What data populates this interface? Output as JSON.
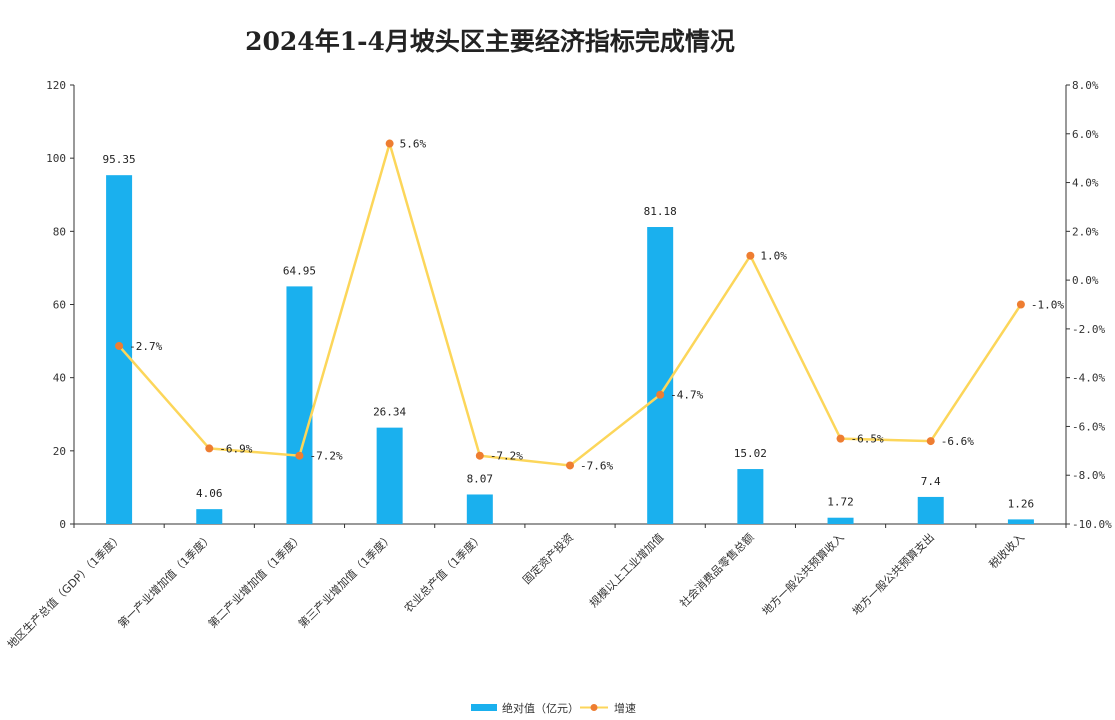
{
  "chart_data": {
    "type": "bar",
    "title": "2024年1-4月坡头区主要经济指标完成情况",
    "categories": [
      "地区生产总值（GDP）（1季度）",
      "第一产业增加值（1季度）",
      "第二产业增加值（1季度）",
      "第三产业增加值（1季度）",
      "农业总产值（1季度）",
      "固定资产投资",
      "规模以上工业增加值",
      "社会消费品零售总额",
      "地方一般公共预算收入",
      "地方一般公共预算支出",
      "税收收入"
    ],
    "series": [
      {
        "name": "绝对值（亿元）",
        "type": "bar",
        "axis": "left",
        "values": [
          95.35,
          4.06,
          64.95,
          26.34,
          8.07,
          null,
          81.18,
          15.02,
          1.72,
          7.4,
          1.26
        ],
        "labels": [
          "95.35",
          "4.06",
          "64.95",
          "26.34",
          "8.07",
          "",
          "81.18",
          "15.02",
          "1.72",
          "7.4",
          "1.26"
        ],
        "color": "#1ab0ee"
      },
      {
        "name": "增速",
        "type": "line",
        "axis": "right",
        "values": [
          -2.7,
          -6.9,
          -7.2,
          5.6,
          -7.2,
          -7.6,
          -4.7,
          1.0,
          -6.5,
          -6.6,
          -1.0
        ],
        "labels": [
          "-2.7%",
          "-6.9%",
          "-7.2%",
          "5.6%",
          "-7.2%",
          "-7.6%",
          "-4.7%",
          "1.0%",
          "-6.5%",
          "-6.6%",
          "-1.0%"
        ],
        "line_color": "#fcd65a",
        "marker_color": "#ee7d31"
      }
    ],
    "y_left": {
      "min": 0,
      "max": 120,
      "ticks": [
        "0",
        "20",
        "40",
        "60",
        "80",
        "100",
        "120"
      ]
    },
    "y_right": {
      "min": -10,
      "max": 8,
      "ticks": [
        "-10.0%",
        "-8.0%",
        "-6.0%",
        "-4.0%",
        "-2.0%",
        "0.0%",
        "2.0%",
        "4.0%",
        "6.0%",
        "8.0%"
      ]
    },
    "grid": false,
    "legend": "bottom-center"
  }
}
